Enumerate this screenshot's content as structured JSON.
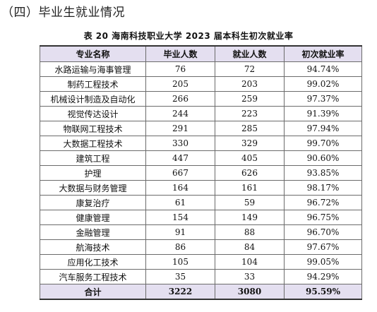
{
  "section": {
    "heading": "（四）毕业生就业情况"
  },
  "table": {
    "caption": "表 20   海南科技职业大学 2023 届本科生初次就业率",
    "columns": [
      "专业名称",
      "毕业人数",
      "就业人数",
      "初次就业率"
    ],
    "rows": [
      {
        "major": "水路运输与海事管理",
        "graduates": "76",
        "employed": "72",
        "rate": "94.74%"
      },
      {
        "major": "制药工程技术",
        "graduates": "205",
        "employed": "203",
        "rate": "99.02%"
      },
      {
        "major": "机械设计制造及自动化",
        "graduates": "266",
        "employed": "259",
        "rate": "97.37%"
      },
      {
        "major": "视觉传达设计",
        "graduates": "244",
        "employed": "223",
        "rate": "91.39%"
      },
      {
        "major": "物联网工程技术",
        "graduates": "291",
        "employed": "285",
        "rate": "97.94%"
      },
      {
        "major": "大数据工程技术",
        "graduates": "330",
        "employed": "329",
        "rate": "99.70%"
      },
      {
        "major": "建筑工程",
        "graduates": "447",
        "employed": "405",
        "rate": "90.60%"
      },
      {
        "major": "护理",
        "graduates": "667",
        "employed": "626",
        "rate": "93.85%"
      },
      {
        "major": "大数据与财务管理",
        "graduates": "164",
        "employed": "161",
        "rate": "98.17%"
      },
      {
        "major": "康复治疗",
        "graduates": "61",
        "employed": "59",
        "rate": "96.72%"
      },
      {
        "major": "健康管理",
        "graduates": "154",
        "employed": "149",
        "rate": "96.75%"
      },
      {
        "major": "金融管理",
        "graduates": "91",
        "employed": "88",
        "rate": "96.70%"
      },
      {
        "major": "航海技术",
        "graduates": "86",
        "employed": "84",
        "rate": "97.67%"
      },
      {
        "major": "应用化工技术",
        "graduates": "105",
        "employed": "104",
        "rate": "99.05%"
      },
      {
        "major": "汽车服务工程技术",
        "graduates": "35",
        "employed": "33",
        "rate": "94.29%"
      }
    ],
    "total": {
      "major": "合计",
      "graduates": "3222",
      "employed": "3080",
      "rate": "95.59%"
    }
  },
  "colors": {
    "header_bg": "#e4dff0",
    "border": "#6b6b6b"
  }
}
